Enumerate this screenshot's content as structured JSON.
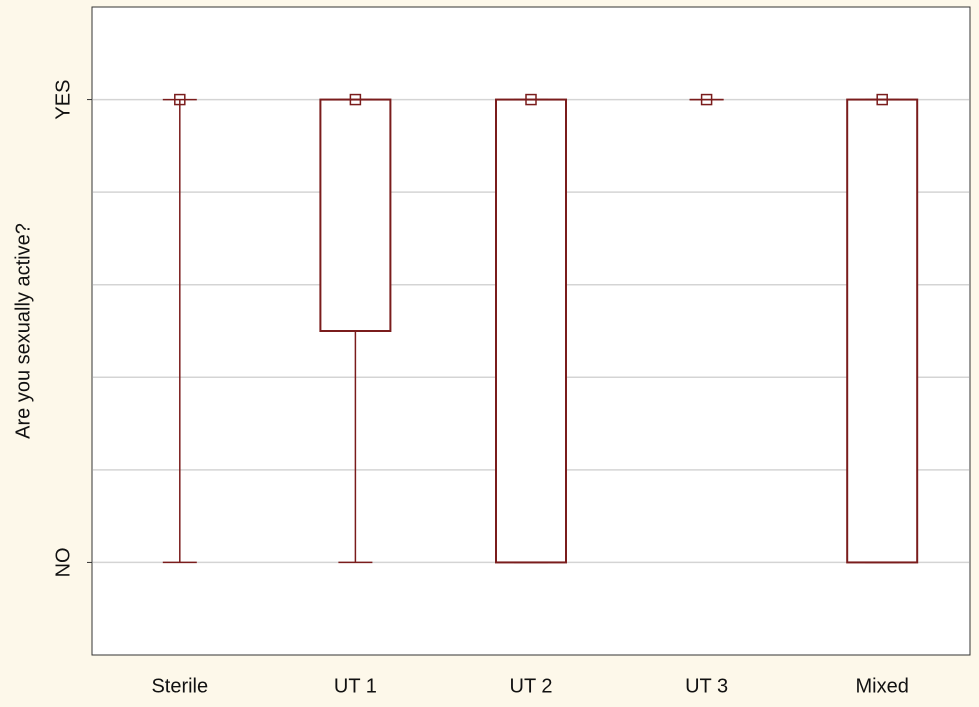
{
  "chart_data": {
    "type": "box",
    "y_label": "Are you sexually active?",
    "categories": [
      "Sterile",
      "UT 1",
      "UT 2",
      "UT 3",
      "Mixed"
    ],
    "min": [
      0,
      0,
      0,
      1,
      0
    ],
    "q1": [
      1,
      0.5,
      0,
      1,
      0
    ],
    "median": [
      1,
      1,
      1,
      1,
      1
    ],
    "q3": [
      1,
      1,
      1,
      1,
      1
    ],
    "max": [
      1,
      1,
      1,
      1,
      1
    ],
    "color": "#7a1c1c",
    "ylim": [
      -0.2,
      1.2
    ],
    "yticks": [
      {
        "value": 0,
        "label": "NO"
      },
      {
        "value": 1,
        "label": "YES"
      }
    ],
    "grid": [
      0,
      0.2,
      0.4,
      0.6,
      0.8,
      1
    ]
  }
}
